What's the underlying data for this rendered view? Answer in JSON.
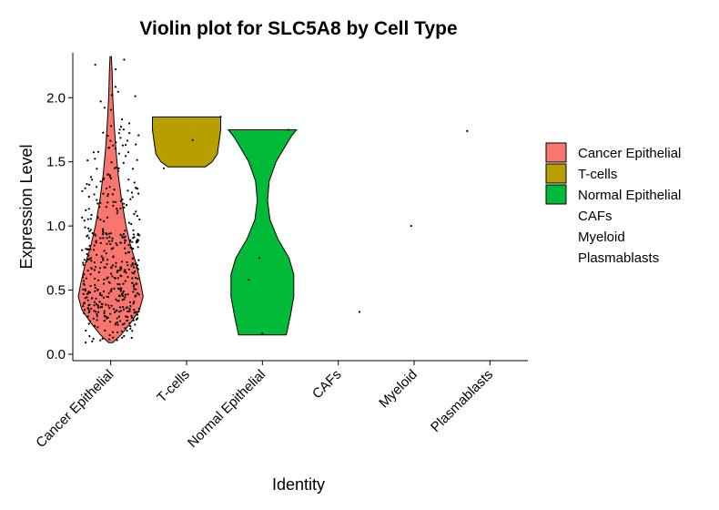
{
  "chart_data": {
    "type": "violin",
    "title": "Violin plot for SLC5A8 by Cell Type",
    "xlabel": "Identity",
    "ylabel": "Expression Level",
    "ylim": [
      -0.05,
      2.35
    ],
    "yticks": [
      "0.0",
      "0.5",
      "1.0",
      "1.5",
      "2.0"
    ],
    "categories": [
      "Cancer Epithelial",
      "T-cells",
      "Normal Epithelial",
      "CAFs",
      "Myeloid",
      "Plasmablasts"
    ],
    "legend_position": "right",
    "grid": false,
    "series": [
      {
        "name": "Cancer Epithelial",
        "color": "#F8766D",
        "range": [
          0.09,
          2.32
        ],
        "profile": [
          [
            0.09,
            0.06
          ],
          [
            0.15,
            0.3
          ],
          [
            0.25,
            0.6
          ],
          [
            0.35,
            0.85
          ],
          [
            0.45,
            0.95
          ],
          [
            0.55,
            0.88
          ],
          [
            0.7,
            0.75
          ],
          [
            0.85,
            0.58
          ],
          [
            1.0,
            0.45
          ],
          [
            1.2,
            0.32
          ],
          [
            1.4,
            0.22
          ],
          [
            1.6,
            0.15
          ],
          [
            1.8,
            0.1
          ],
          [
            2.0,
            0.06
          ],
          [
            2.2,
            0.04
          ],
          [
            2.32,
            0.02
          ]
        ]
      },
      {
        "name": "T-cells",
        "color": "#B79F00",
        "range": [
          1.46,
          1.85
        ],
        "profile": [
          [
            1.46,
            0.55
          ],
          [
            1.5,
            0.75
          ],
          [
            1.56,
            0.9
          ],
          [
            1.65,
            0.95
          ],
          [
            1.75,
            1.0
          ],
          [
            1.85,
            1.0
          ]
        ]
      },
      {
        "name": "Normal Epithelial",
        "color": "#00BA38",
        "range": [
          0.15,
          1.75
        ],
        "profile": [
          [
            0.15,
            0.7
          ],
          [
            0.3,
            0.82
          ],
          [
            0.45,
            0.92
          ],
          [
            0.62,
            0.92
          ],
          [
            0.75,
            0.78
          ],
          [
            0.9,
            0.45
          ],
          [
            1.05,
            0.22
          ],
          [
            1.2,
            0.15
          ],
          [
            1.35,
            0.2
          ],
          [
            1.5,
            0.4
          ],
          [
            1.6,
            0.62
          ],
          [
            1.7,
            0.85
          ],
          [
            1.75,
            1.0
          ]
        ]
      },
      {
        "name": "CAFs",
        "color": "#00BFC4"
      },
      {
        "name": "Myeloid",
        "color": "#619CFF"
      },
      {
        "name": "Plasmablasts",
        "color": "#F564E3"
      }
    ],
    "points": [
      {
        "category": "T-cells",
        "offset": 0.08,
        "y": 1.67
      },
      {
        "category": "T-cells",
        "offset": 0.45,
        "y": 1.85
      },
      {
        "category": "T-cells",
        "offset": -0.3,
        "y": 1.45
      },
      {
        "category": "Normal Epithelial",
        "offset": -0.04,
        "y": 0.75
      },
      {
        "category": "Normal Epithelial",
        "offset": -0.18,
        "y": 0.58
      },
      {
        "category": "Normal Epithelial",
        "offset": 0.0,
        "y": 0.16
      },
      {
        "category": "Normal Epithelial",
        "offset": 0.34,
        "y": 1.75
      },
      {
        "category": "CAFs",
        "offset": 0.28,
        "y": 0.33
      },
      {
        "category": "Myeloid",
        "offset": -0.04,
        "y": 1.0
      },
      {
        "category": "Plasmablasts",
        "offset": -0.3,
        "y": 1.74
      }
    ]
  }
}
